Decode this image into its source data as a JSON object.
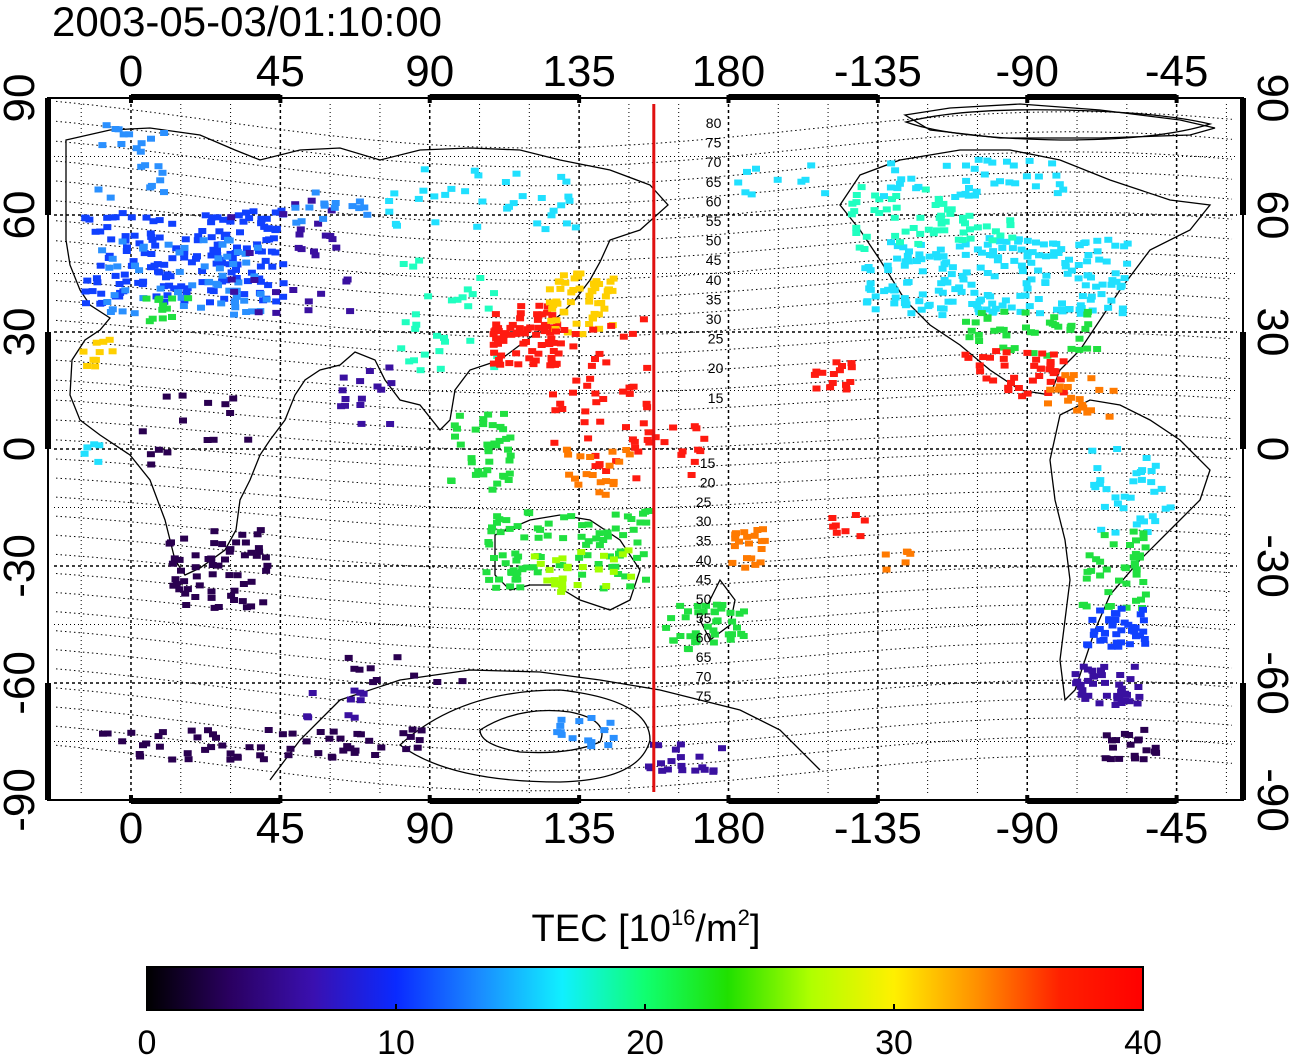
{
  "timestamp": "2003-05-03/01:10:00",
  "map": {
    "lon_ticks_top": [
      "0",
      "45",
      "90",
      "135",
      "180",
      "-135",
      "-90",
      "-45"
    ],
    "lon_ticks_bottom": [
      "0",
      "45",
      "90",
      "135",
      "180",
      "-135",
      "-90",
      "-45"
    ],
    "lat_ticks_left": [
      "90",
      "60",
      "30",
      "0",
      "-30",
      "-60",
      "-90"
    ],
    "lat_ticks_right": [
      "90",
      "60",
      "30",
      "0",
      "-30",
      "-60",
      "-90"
    ],
    "lon_range": [
      -25,
      335
    ],
    "lat_range": [
      -90,
      90
    ],
    "contour_labels_north": [
      "80",
      "75",
      "70",
      "65",
      "60",
      "55",
      "50",
      "45",
      "40",
      "35",
      "30",
      "25",
      "20",
      "15"
    ],
    "contour_labels_south": [
      "15",
      "20",
      "25",
      "30",
      "35",
      "40",
      "45",
      "50",
      "55",
      "60",
      "65",
      "70",
      "75"
    ],
    "meridian_line_lon": 157.5,
    "meridian_color": "#e01010",
    "grid": "dotted",
    "colors": {
      "very_low": "#2a0050",
      "low": "#3a10a0",
      "blue": "#1040ff",
      "light_blue": "#2a90ff",
      "cyan": "#20e0ff",
      "teal": "#20ffc0",
      "green": "#20e040",
      "yellow_green": "#a0ff00",
      "yellow": "#ffd000",
      "orange": "#ff7a00",
      "red": "#ff1a10"
    }
  },
  "colorbar": {
    "title_main": "TEC  [10",
    "title_sup1": "16",
    "title_mid": "/m",
    "title_sup2": "2",
    "title_end": "]",
    "tick_labels": [
      "0",
      "10",
      "20",
      "30",
      "40"
    ],
    "range": [
      0,
      40
    ],
    "colormap": [
      "#000000",
      "#2a0060",
      "#3a10b0",
      "#0a2aff",
      "#1a8aff",
      "#10f0ff",
      "#10ff70",
      "#20e000",
      "#b0ff00",
      "#fff000",
      "#ff9000",
      "#ff2000",
      "#ff0000"
    ]
  }
}
